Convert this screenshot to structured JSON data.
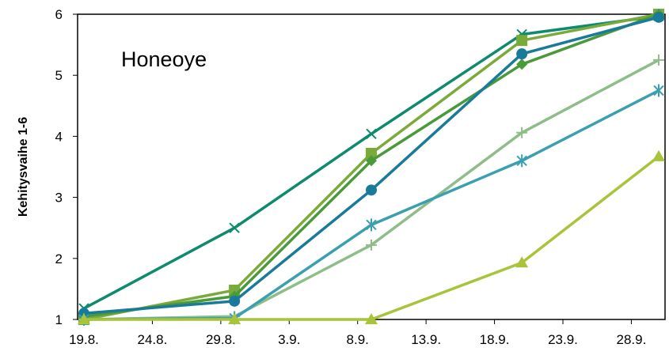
{
  "chart_data": {
    "type": "line",
    "title": "Honeoye",
    "xlabel": "",
    "ylabel": "Kehitysvaihe 1-6",
    "x_tick_labels": [
      "19.8.",
      "24.8.",
      "29.8.",
      "3.9.",
      "8.9.",
      "13.9.",
      "18.9.",
      "23.9.",
      "28.9."
    ],
    "y_tick_labels": [
      "1",
      "2",
      "3",
      "4",
      "5",
      "6"
    ],
    "ylim": [
      1,
      6
    ],
    "x_range_days": [
      "19.8.",
      "30.9."
    ],
    "grid": false,
    "legend": "none",
    "series": [
      {
        "marker": "x",
        "color": "#0e8a6e",
        "points": [
          [
            "19.8.",
            1.18
          ],
          [
            "30.8.",
            2.5
          ],
          [
            "9.9.",
            4.04
          ],
          [
            "20.9.",
            5.67
          ],
          [
            "30.9.",
            5.97
          ]
        ]
      },
      {
        "marker": "square",
        "color": "#7aaa3a",
        "points": [
          [
            "19.8.",
            1.0
          ],
          [
            "30.8.",
            1.48
          ],
          [
            "9.9.",
            3.72
          ],
          [
            "20.9.",
            5.57
          ],
          [
            "30.9.",
            6.0
          ]
        ]
      },
      {
        "marker": "diamond",
        "color": "#4a9a3a",
        "points": [
          [
            "19.8.",
            1.05
          ],
          [
            "30.8.",
            1.38
          ],
          [
            "9.9.",
            3.6
          ],
          [
            "20.9.",
            5.18
          ],
          [
            "30.9.",
            6.0
          ]
        ]
      },
      {
        "marker": "circle",
        "color": "#1a7a9a",
        "points": [
          [
            "19.8.",
            1.1
          ],
          [
            "30.8.",
            1.3
          ],
          [
            "9.9.",
            3.12
          ],
          [
            "20.9.",
            5.35
          ],
          [
            "30.9.",
            5.95
          ]
        ]
      },
      {
        "marker": "plus",
        "color": "#8ebd8a",
        "points": [
          [
            "19.8.",
            1.0
          ],
          [
            "30.8.",
            1.05
          ],
          [
            "9.9.",
            2.22
          ],
          [
            "20.9.",
            4.06
          ],
          [
            "30.9.",
            5.25
          ]
        ]
      },
      {
        "marker": "star",
        "color": "#3aa0b0",
        "points": [
          [
            "19.8.",
            1.0
          ],
          [
            "30.8.",
            1.02
          ],
          [
            "9.9.",
            2.55
          ],
          [
            "20.9.",
            3.6
          ],
          [
            "30.9.",
            4.75
          ]
        ]
      },
      {
        "marker": "triangle",
        "color": "#a8c43a",
        "points": [
          [
            "19.8.",
            1.0
          ],
          [
            "30.8.",
            1.0
          ],
          [
            "9.9.",
            1.0
          ],
          [
            "20.9.",
            1.93
          ],
          [
            "30.9.",
            3.67
          ]
        ]
      }
    ]
  }
}
